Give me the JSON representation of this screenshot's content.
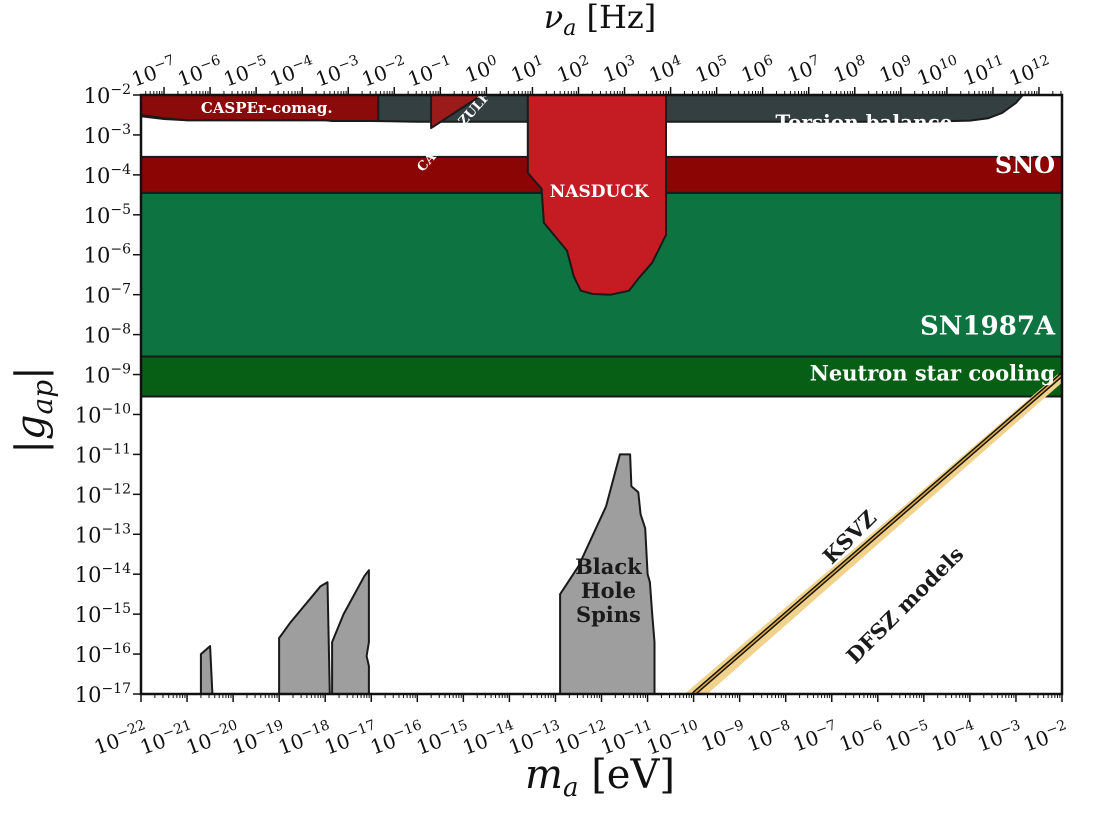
{
  "chart_data": {
    "type": "area",
    "xlabel": "m_a [eV]",
    "x2label": "ν_a [Hz]",
    "ylabel": "|g_ap|",
    "xscale": "log",
    "yscale": "log",
    "xlim": [
      -22,
      -2
    ],
    "ylim": [
      -17,
      -2
    ],
    "x2lim": [
      -7.5,
      12.5
    ],
    "grid": false,
    "legend": "none",
    "x_ticks": [
      "-22",
      "-21",
      "-20",
      "-19",
      "-18",
      "-17",
      "-16",
      "-15",
      "-14",
      "-13",
      "-12",
      "-11",
      "-10",
      "-9",
      "-8",
      "-7",
      "-6",
      "-5",
      "-4",
      "-3",
      "-2"
    ],
    "x2_ticks": [
      "-7",
      "-6",
      "-5",
      "-4",
      "-3",
      "-2",
      "-1",
      "0",
      "1",
      "2",
      "3",
      "4",
      "5",
      "6",
      "7",
      "8",
      "9",
      "10",
      "11",
      "12"
    ],
    "y_ticks": [
      "-2",
      "-3",
      "-4",
      "-5",
      "-6",
      "-7",
      "-8",
      "-9",
      "-10",
      "-11",
      "-12",
      "-13",
      "-14",
      "-15",
      "-16",
      "-17"
    ],
    "colors": {
      "sn1987a": "#0d7340",
      "neutron_star": "#065f15",
      "sno": "#8b0505",
      "torsion": "#333f40",
      "casper_comag": "#8b0a0a",
      "casper_zulf": "#9b1a1a",
      "nasduck": "#c51b23",
      "black_hole": "#9e9e9e",
      "ksvz_band": "#f1d28c",
      "outline": "#1a1a1a"
    },
    "regions": [
      {
        "name": "SN1987A",
        "label": "SN1987A",
        "bounds": {
          "x": [
            -22,
            -2
          ],
          "y": [
            -8.55,
            -4.45
          ]
        }
      },
      {
        "name": "Neutron star cooling",
        "label": "Neutron star cooling",
        "bounds": {
          "x": [
            -22,
            -2
          ],
          "y": [
            -9.55,
            -8.55
          ]
        }
      },
      {
        "name": "SNO",
        "label": "SNO",
        "bounds": {
          "x": [
            -22,
            -2
          ],
          "y": [
            -4.45,
            -3.55
          ]
        }
      },
      {
        "name": "Torsion balance",
        "label": "Torsion balance",
        "polygon": [
          [
            -22,
            -2.53
          ],
          [
            -21.5,
            -2.6
          ],
          [
            -21,
            -2.63
          ],
          [
            -19,
            -2.63
          ],
          [
            -18,
            -2.63
          ],
          [
            -17,
            -2.65
          ],
          [
            -16,
            -2.67
          ],
          [
            -14,
            -2.67
          ],
          [
            -11,
            -2.67
          ],
          [
            -8,
            -2.67
          ],
          [
            -5,
            -2.67
          ],
          [
            -4,
            -2.64
          ],
          [
            -3.6,
            -2.58
          ],
          [
            -3.3,
            -2.45
          ],
          [
            -3.0,
            -2.2
          ],
          [
            -2.85,
            -2.0
          ],
          [
            -22,
            -2.0
          ]
        ]
      },
      {
        "name": "CASPEr-comag.",
        "label": "CASPEr-comag.",
        "polygon": [
          [
            -22,
            -2.5
          ],
          [
            -21.5,
            -2.58
          ],
          [
            -21,
            -2.63
          ],
          [
            -19,
            -2.63
          ],
          [
            -18,
            -2.63
          ],
          [
            -17.85,
            -2.65
          ],
          [
            -16.85,
            -2.65
          ],
          [
            -16.85,
            -2.0
          ],
          [
            -22,
            -2.0
          ]
        ]
      },
      {
        "name": "CASPEr-ZULF",
        "label": "CASPEr-ZULF",
        "polygon": [
          [
            -15.7,
            -2.0
          ],
          [
            -14.6,
            -2.0
          ],
          [
            -15.7,
            -2.83
          ]
        ]
      },
      {
        "name": "NASDUCK",
        "label": "NASDUCK",
        "polygon": [
          [
            -13.6,
            -2.0
          ],
          [
            -10.6,
            -2.0
          ],
          [
            -10.6,
            -5.5
          ],
          [
            -10.9,
            -6.2
          ],
          [
            -11.2,
            -6.6
          ],
          [
            -11.4,
            -6.9
          ],
          [
            -11.8,
            -7.0
          ],
          [
            -12.2,
            -6.98
          ],
          [
            -12.45,
            -6.9
          ],
          [
            -12.6,
            -6.55
          ],
          [
            -12.75,
            -5.9
          ],
          [
            -13.0,
            -5.55
          ],
          [
            -13.25,
            -5.2
          ],
          [
            -13.3,
            -4.35
          ],
          [
            -13.6,
            -3.95
          ]
        ]
      },
      {
        "name": "Black Hole Spins",
        "label": "Black\nHole\nSpins",
        "polygon": [
          [
            -12.9,
            -17.0
          ],
          [
            -12.9,
            -14.5
          ],
          [
            -12.5,
            -13.8
          ],
          [
            -11.9,
            -12.3
          ],
          [
            -11.6,
            -11.0
          ],
          [
            -11.38,
            -11.0
          ],
          [
            -11.35,
            -11.8
          ],
          [
            -11.2,
            -11.95
          ],
          [
            -11.15,
            -12.5
          ],
          [
            -11.05,
            -12.85
          ],
          [
            -11.0,
            -14.0
          ],
          [
            -10.95,
            -14.2
          ],
          [
            -10.9,
            -15.0
          ],
          [
            -10.85,
            -15.7
          ],
          [
            -10.85,
            -17.0
          ]
        ]
      },
      {
        "name": "Black hole spins 1",
        "label": "",
        "polygon": [
          [
            -20.7,
            -17.0
          ],
          [
            -20.7,
            -16.0
          ],
          [
            -20.5,
            -15.8
          ],
          [
            -20.45,
            -17.0
          ]
        ]
      },
      {
        "name": "Black hole spins 2",
        "label": "",
        "polygon": [
          [
            -19.0,
            -17.0
          ],
          [
            -19.0,
            -15.6
          ],
          [
            -18.75,
            -15.2
          ],
          [
            -18.1,
            -14.3
          ],
          [
            -17.95,
            -14.2
          ],
          [
            -17.9,
            -17.0
          ]
        ]
      },
      {
        "name": "Black hole spins 3",
        "label": "",
        "polygon": [
          [
            -17.85,
            -17.0
          ],
          [
            -17.85,
            -15.7
          ],
          [
            -17.6,
            -15.0
          ],
          [
            -17.15,
            -14.05
          ],
          [
            -17.05,
            -13.9
          ],
          [
            -17.05,
            -15.7
          ],
          [
            -17.1,
            -16.05
          ],
          [
            -17.05,
            -16.3
          ],
          [
            -17.05,
            -17.0
          ]
        ]
      }
    ],
    "lines": [
      {
        "name": "KSVZ",
        "label": "KSVZ",
        "points": [
          [
            -10.0,
            -17.0
          ],
          [
            -2.0,
            -9.0
          ]
        ]
      },
      {
        "name": "DFSZ models",
        "label": "DFSZ models",
        "band": [
          [
            -10.2,
            -17.0
          ],
          [
            -2.1,
            -9.0
          ],
          [
            -1.8,
            -9.0
          ],
          [
            -9.7,
            -17.0
          ]
        ]
      }
    ]
  }
}
